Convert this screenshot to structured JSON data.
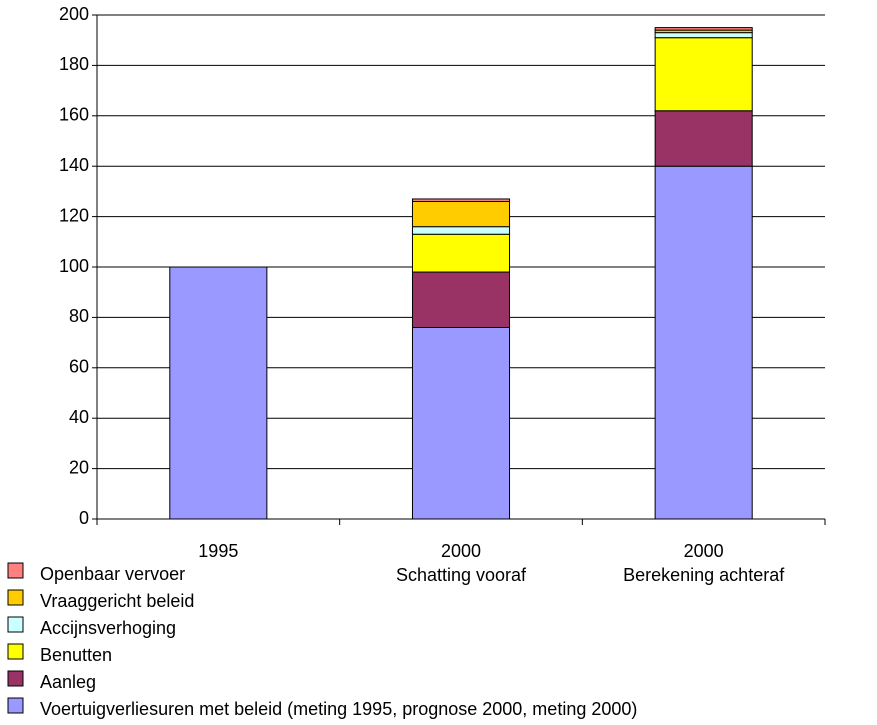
{
  "chart_data": {
    "type": "stacked_bar",
    "categories": [
      [
        "1995"
      ],
      [
        "2000",
        "Schatting vooraf"
      ],
      [
        "2000",
        "Berekening achteraf"
      ]
    ],
    "series": [
      {
        "name": "Voertuigverliesuren met beleid (meting 1995, prognose 2000, meting 2000)",
        "color": "#9999ff",
        "values": [
          100,
          76,
          140
        ]
      },
      {
        "name": "Aanleg",
        "color": "#993366",
        "values": [
          null,
          22,
          22
        ]
      },
      {
        "name": "Benutten",
        "color": "#ffff00",
        "values": [
          null,
          15,
          29
        ]
      },
      {
        "name": "Accijnsverhoging",
        "color": "#ccffff",
        "values": [
          null,
          3,
          2
        ]
      },
      {
        "name": "Vraaggericht beleid",
        "color": "#ffcc00",
        "values": [
          null,
          10,
          1
        ]
      },
      {
        "name": "Openbaar vervoer",
        "color": "#ff8080",
        "values": [
          null,
          1,
          1
        ]
      }
    ],
    "ylim": [
      0,
      200
    ],
    "yticks": [
      0,
      20,
      40,
      60,
      80,
      100,
      120,
      140,
      160,
      180,
      200
    ],
    "grid": true
  }
}
